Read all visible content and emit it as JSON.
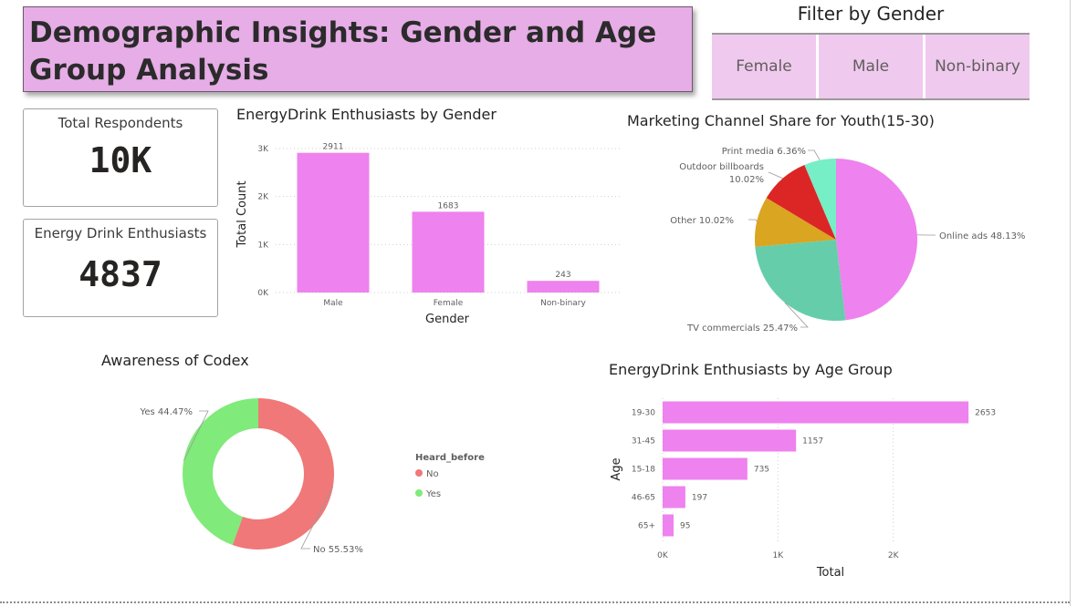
{
  "header": {
    "title": "Demographic Insights: Gender and Age Group Analysis"
  },
  "filter": {
    "title": "Filter by Gender",
    "options": [
      "Female",
      "Male",
      "Non-binary"
    ],
    "background": "#f0c9ef"
  },
  "cards": [
    {
      "label": "Total Respondents",
      "value": "10K"
    },
    {
      "label": "Energy Drink Enthusiasts",
      "value": "4837"
    }
  ],
  "colors": {
    "accent": "#ee82ee",
    "title_bg": "#e6ade6"
  },
  "chart_data": [
    {
      "id": "gender_bar",
      "type": "bar",
      "title": "EnergyDrink Enthusiasts by Gender",
      "xlabel": "Gender",
      "ylabel": "Total Count",
      "categories": [
        "Male",
        "Female",
        "Non-binary"
      ],
      "values": [
        2911,
        1683,
        243
      ],
      "yticks": [
        "0K",
        "1K",
        "2K",
        "3K"
      ],
      "ylim": [
        0,
        3000
      ],
      "color": "#ee82ee",
      "grid": true
    },
    {
      "id": "channel_pie",
      "type": "pie",
      "title": "Marketing Channel Share for Youth(15-30)",
      "slices": [
        {
          "label": "Online ads",
          "value": 48.13,
          "display": "Online ads 48.13%",
          "color": "#ee82ee"
        },
        {
          "label": "TV commercials",
          "value": 25.47,
          "display": "TV commercials 25.47%",
          "color": "#66cdaa"
        },
        {
          "label": "Other",
          "value": 10.02,
          "display": "Other 10.02%",
          "color": "#daa520"
        },
        {
          "label": "Outdoor billboards",
          "value": 10.02,
          "display": [
            "Outdoor billboards",
            "10.02%"
          ],
          "color": "#dc2626"
        },
        {
          "label": "Print media",
          "value": 6.36,
          "display": "Print media 6.36%",
          "color": "#76eec6"
        }
      ]
    },
    {
      "id": "awareness_donut",
      "type": "pie",
      "title": "Awareness of Codex",
      "legend_title": "Heard_before",
      "slices": [
        {
          "label": "No",
          "value": 55.53,
          "display": "No 55.53%",
          "color": "#f07878"
        },
        {
          "label": "Yes",
          "value": 44.47,
          "display": "Yes 44.47%",
          "color": "#80ea7a"
        }
      ]
    },
    {
      "id": "age_bar",
      "type": "bar",
      "orientation": "horizontal",
      "title": "EnergyDrink Enthusiasts by Age Group",
      "xlabel": "Total",
      "ylabel": "Age",
      "categories": [
        "19-30",
        "31-45",
        "15-18",
        "46-65",
        "65+"
      ],
      "values": [
        2653,
        1157,
        735,
        197,
        95
      ],
      "xticks": [
        "0K",
        "1K",
        "2K"
      ],
      "xlim": [
        0,
        3000
      ],
      "color": "#ee82ee",
      "grid": true
    }
  ]
}
